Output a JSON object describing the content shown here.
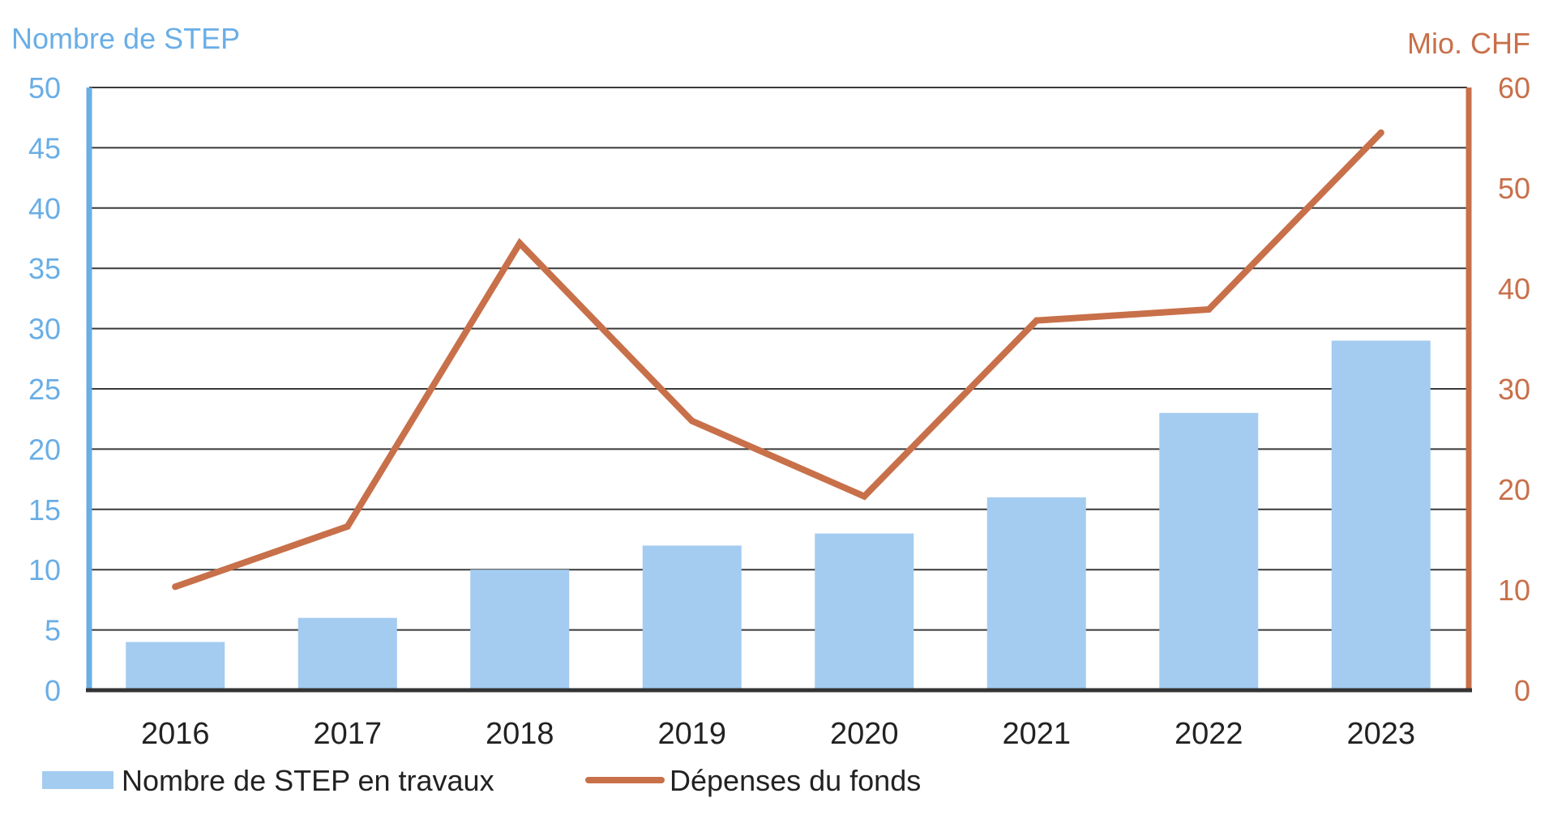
{
  "chart_data": {
    "type": "bar",
    "categories": [
      "2016",
      "2017",
      "2018",
      "2019",
      "2020",
      "2021",
      "2022",
      "2023"
    ],
    "series": [
      {
        "name": "Nombre de STEP en travaux",
        "kind": "bar",
        "axis": "left",
        "color": "#a3ccf0",
        "values": [
          4,
          6,
          10,
          12,
          13,
          16,
          23,
          29
        ]
      },
      {
        "name": "Dépenses du fonds",
        "kind": "line",
        "axis": "right",
        "color": "#c8704a",
        "values": [
          10.3,
          16.3,
          44.5,
          26.8,
          19.3,
          36.8,
          37.9,
          55.5
        ]
      }
    ],
    "left_axis": {
      "label": "Nombre de STEP",
      "ylim": [
        0,
        50
      ],
      "ticks": [
        "0",
        "5",
        "10",
        "15",
        "20",
        "25",
        "30",
        "35",
        "40",
        "45",
        "50"
      ],
      "color": "#6aaee6"
    },
    "right_axis": {
      "label": "Mio. CHF",
      "ylim": [
        0,
        60
      ],
      "ticks": [
        "0",
        "10",
        "20",
        "30",
        "40",
        "50",
        "60"
      ],
      "color": "#c8704a"
    },
    "grid": true,
    "legend_position": "bottom-left"
  }
}
